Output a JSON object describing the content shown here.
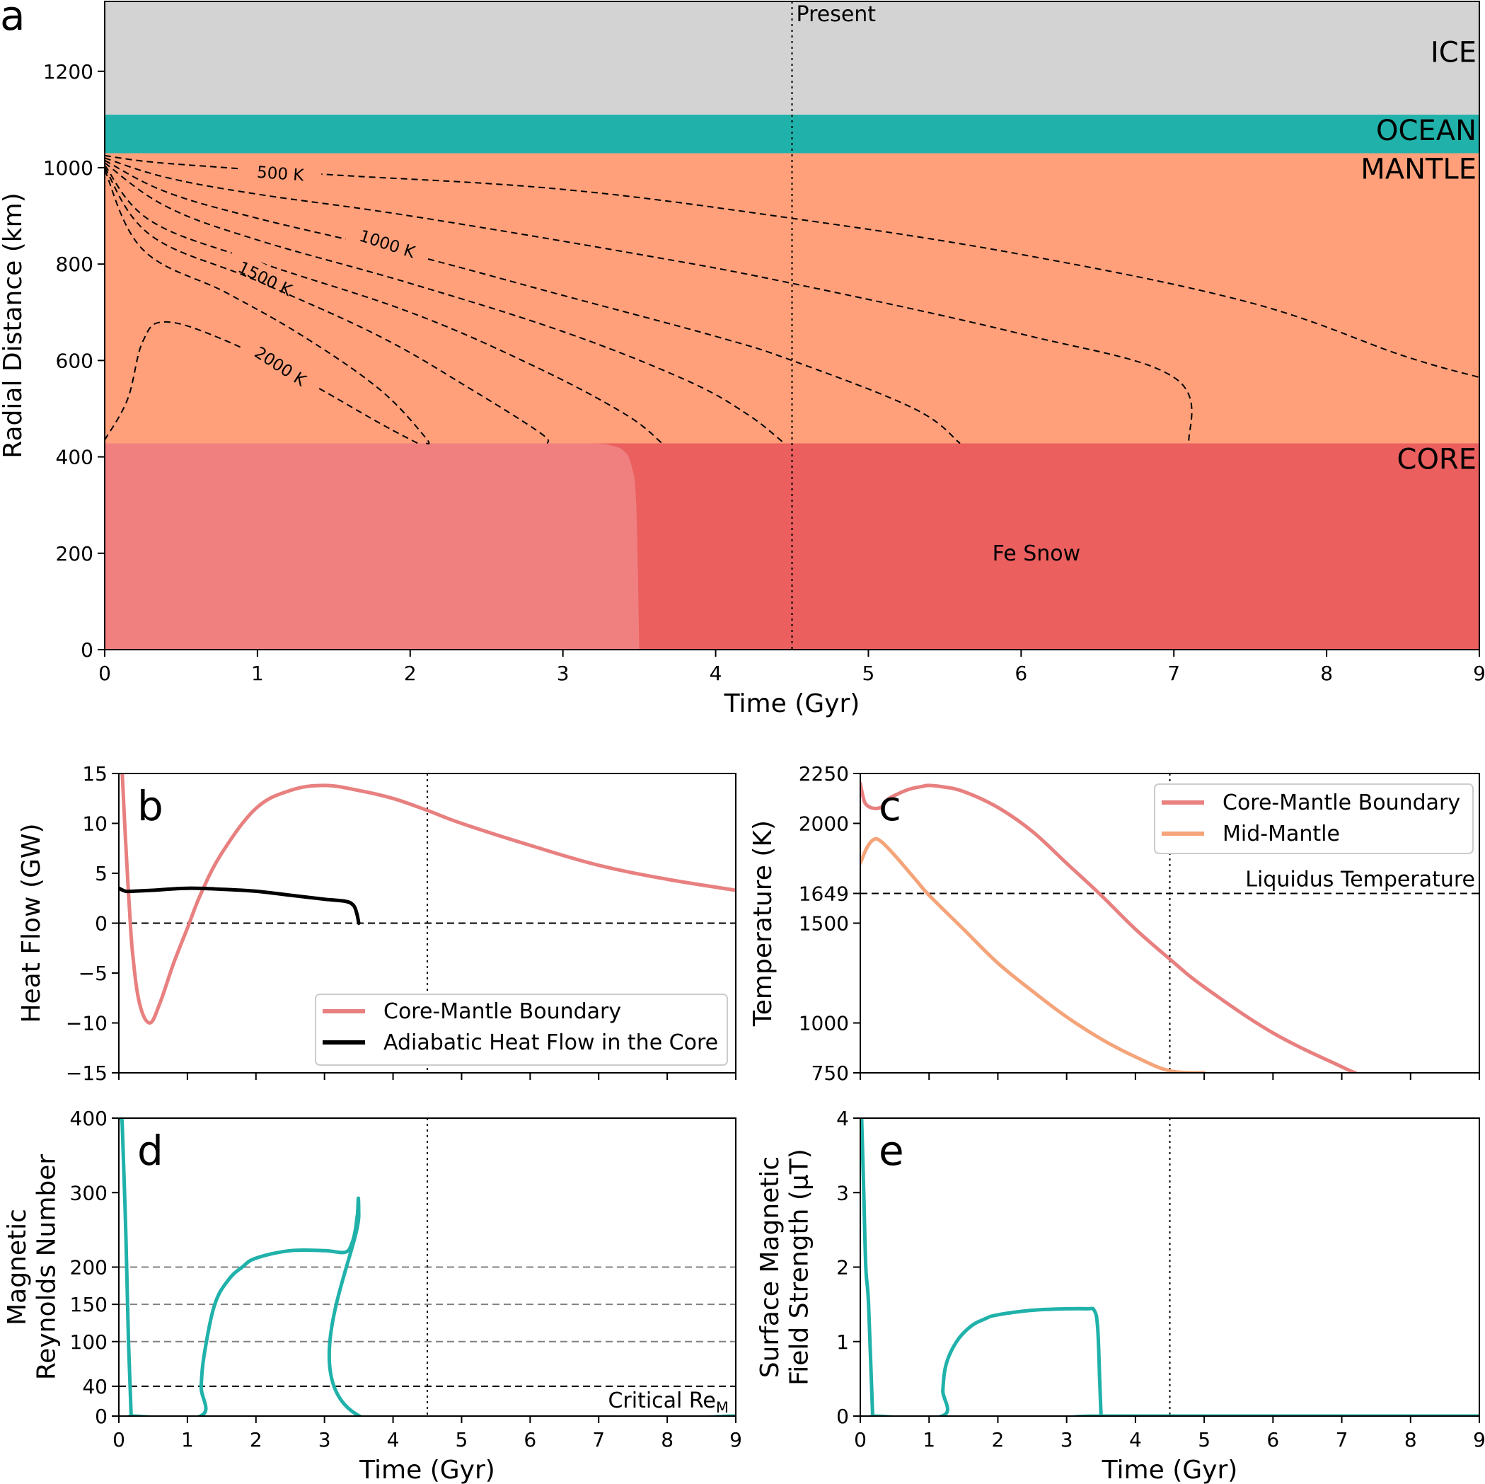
{
  "chart_data": [
    {
      "panel": "a",
      "type": "area",
      "xlabel": "Time (Gyr)",
      "ylabel": "Radial Distance (km)",
      "xlim": [
        0,
        9
      ],
      "ylim": [
        0,
        1345
      ],
      "xticks": [
        0,
        1,
        2,
        3,
        4,
        5,
        6,
        7,
        8,
        9
      ],
      "yticks": [
        0,
        200,
        400,
        600,
        800,
        1000,
        1200
      ],
      "colors": {
        "ice": "#d3d3d3",
        "ocean": "#20b2aa",
        "mantle": "#ffa07a",
        "core_liquid": "#f08080",
        "core_snow": "#eb5f5f"
      },
      "layers": [
        {
          "name": "ICE",
          "from": 1110,
          "to": 1345
        },
        {
          "name": "OCEAN",
          "from": 1030,
          "to": 1110
        },
        {
          "name": "MANTLE",
          "from": 428,
          "to": 1030
        },
        {
          "name": "CORE",
          "from": 0,
          "to": 428
        }
      ],
      "fe_snow_label": "Fe Snow",
      "fe_snow_boundary": [
        [
          3.18,
          428
        ],
        [
          3.3,
          425
        ],
        [
          3.4,
          412
        ],
        [
          3.45,
          380
        ],
        [
          3.48,
          300
        ],
        [
          3.5,
          0
        ]
      ],
      "present_time": 4.5,
      "present_label": "Present",
      "contours": [
        {
          "label": "500 K",
          "points": [
            [
              0,
              1025
            ],
            [
              0.3,
              1012
            ],
            [
              0.8,
              1000
            ],
            [
              1.5,
              985
            ],
            [
              3.0,
              955
            ],
            [
              4.5,
              895
            ],
            [
              6.0,
              820
            ],
            [
              7.5,
              720
            ],
            [
              8.5,
              610
            ],
            [
              9.0,
              565
            ]
          ]
        },
        {
          "label": "",
          "points": [
            [
              0,
              1020
            ],
            [
              0.4,
              980
            ],
            [
              1.0,
              945
            ],
            [
              2.0,
              900
            ],
            [
              3.5,
              820
            ],
            [
              4.5,
              760
            ],
            [
              6.0,
              655
            ],
            [
              7.0,
              565
            ],
            [
              7.1,
              428
            ]
          ]
        },
        {
          "label": "1000 K",
          "points": [
            [
              0,
              1015
            ],
            [
              0.4,
              950
            ],
            [
              1.0,
              895
            ],
            [
              2.0,
              820
            ],
            [
              3.0,
              735
            ],
            [
              4.0,
              650
            ],
            [
              4.5,
              600
            ],
            [
              5.3,
              500
            ],
            [
              5.6,
              428
            ]
          ]
        },
        {
          "label": "",
          "points": [
            [
              0,
              1010
            ],
            [
              0.4,
              920
            ],
            [
              1.0,
              850
            ],
            [
              2.0,
              760
            ],
            [
              3.0,
              660
            ],
            [
              3.8,
              560
            ],
            [
              4.2,
              490
            ],
            [
              4.45,
              428
            ]
          ]
        },
        {
          "label": "1500 K",
          "points": [
            [
              0,
              1005
            ],
            [
              0.3,
              890
            ],
            [
              1.0,
              805
            ],
            [
              2.0,
              700
            ],
            [
              2.8,
              590
            ],
            [
              3.4,
              490
            ],
            [
              3.65,
              428
            ]
          ]
        },
        {
          "label": "",
          "points": [
            [
              0,
              1000
            ],
            [
              0.3,
              860
            ],
            [
              1.0,
              765
            ],
            [
              1.8,
              650
            ],
            [
              2.4,
              540
            ],
            [
              2.85,
              450
            ],
            [
              2.9,
              428
            ]
          ]
        },
        {
          "label": "",
          "points": [
            [
              0,
              995
            ],
            [
              0.25,
              830
            ],
            [
              0.8,
              740
            ],
            [
              1.3,
              650
            ],
            [
              1.8,
              540
            ],
            [
              2.1,
              440
            ],
            [
              2.1,
              428
            ]
          ]
        },
        {
          "label": "2000 K",
          "points": [
            [
              0,
              435
            ],
            [
              0.15,
              520
            ],
            [
              0.25,
              640
            ],
            [
              0.4,
              680
            ],
            [
              0.8,
              640
            ],
            [
              1.3,
              560
            ],
            [
              1.8,
              470
            ],
            [
              2.05,
              428
            ]
          ]
        }
      ]
    },
    {
      "panel": "b",
      "type": "line",
      "xlabel": "",
      "ylabel": "Heat Flow (GW)",
      "xlim": [
        0,
        9
      ],
      "ylim": [
        -15,
        15
      ],
      "yticks": [
        -15,
        -10,
        -5,
        0,
        5,
        10,
        15
      ],
      "ytick_labels": [
        "−15",
        "−10",
        "−5",
        "0",
        "5",
        "10",
        "15"
      ],
      "reference_lines": [
        {
          "y": 0,
          "style": "dashed",
          "color": "#000000"
        }
      ],
      "present_time": 4.5,
      "legend_position": "lower-right",
      "series": [
        {
          "name": "Core-Mantle Boundary",
          "color": "#e88080",
          "x": [
            0.05,
            0.1,
            0.15,
            0.2,
            0.3,
            0.45,
            0.6,
            0.8,
            1.0,
            1.2,
            1.5,
            2.0,
            2.5,
            3.0,
            3.5,
            4.0,
            4.5,
            5.0,
            6.0,
            7.0,
            8.0,
            9.0
          ],
          "y": [
            15,
            8,
            2,
            -3,
            -8,
            -10,
            -8,
            -4,
            -0.5,
            3,
            7,
            11.5,
            13.3,
            13.8,
            13.3,
            12.5,
            11.3,
            10.0,
            7.8,
            5.8,
            4.4,
            3.3
          ]
        },
        {
          "name": "Adiabatic Heat Flow in the Core",
          "color": "#000000",
          "x": [
            0,
            0.1,
            0.2,
            0.5,
            1.0,
            1.5,
            2.0,
            2.5,
            3.0,
            3.3,
            3.42,
            3.47,
            3.5
          ],
          "y": [
            3.5,
            3.2,
            3.2,
            3.3,
            3.5,
            3.4,
            3.2,
            2.8,
            2.4,
            2.2,
            1.8,
            1.0,
            0
          ]
        }
      ]
    },
    {
      "panel": "c",
      "type": "line",
      "xlabel": "",
      "ylabel": "Temperature (K)",
      "xlim": [
        0,
        9
      ],
      "ylim": [
        750,
        2250
      ],
      "yticks": [
        750,
        1000,
        1500,
        1649,
        2000,
        2250
      ],
      "reference_lines": [
        {
          "y": 1649,
          "style": "dashed",
          "color": "#000000",
          "label": "Liquidus Temperature"
        }
      ],
      "present_time": 4.5,
      "legend_position": "top-right",
      "series": [
        {
          "name": "Core-Mantle Boundary",
          "color": "#e88080",
          "x": [
            0,
            0.05,
            0.1,
            0.2,
            0.3,
            0.35,
            0.4,
            0.5,
            0.7,
            0.9,
            1.0,
            1.2,
            1.5,
            2.0,
            2.5,
            3.0,
            3.5,
            4.0,
            4.5,
            5.0,
            6.0,
            7.0,
            7.2
          ],
          "y": [
            2200,
            2120,
            2090,
            2075,
            2080,
            2100,
            2120,
            2140,
            2170,
            2185,
            2190,
            2183,
            2160,
            2080,
            1960,
            1800,
            1640,
            1470,
            1320,
            1180,
            950,
            780,
            750
          ]
        },
        {
          "name": "Mid-Mantle",
          "color": "#f5a47a",
          "x": [
            0,
            0.1,
            0.2,
            0.3,
            0.5,
            0.8,
            1.0,
            1.5,
            2.0,
            2.5,
            3.0,
            3.5,
            4.0,
            4.5,
            5.0
          ],
          "y": [
            1800,
            1880,
            1920,
            1910,
            1840,
            1720,
            1640,
            1470,
            1300,
            1160,
            1030,
            920,
            830,
            760,
            750
          ]
        }
      ]
    },
    {
      "panel": "d",
      "type": "line",
      "xlabel": "Time (Gyr)",
      "ylabel": "Magnetic Reynolds Number",
      "ylabel_lines": [
        "Magnetic",
        "Reynolds Number"
      ],
      "xlim": [
        0,
        9
      ],
      "ylim": [
        0,
        400
      ],
      "xticks": [
        0,
        1,
        2,
        3,
        4,
        5,
        6,
        7,
        8,
        9
      ],
      "yticks": [
        0,
        40,
        100,
        150,
        200,
        300,
        400
      ],
      "reference_lines": [
        {
          "y": 40,
          "style": "dashed",
          "color": "#000000",
          "label": "Critical Re",
          "label_subscript": "M"
        },
        {
          "y": 100,
          "style": "dashed",
          "color": "#808080"
        },
        {
          "y": 150,
          "style": "dashed",
          "color": "#808080"
        },
        {
          "y": 200,
          "style": "dashed",
          "color": "#808080"
        }
      ],
      "present_time": 4.5,
      "series": [
        {
          "name": "",
          "color": "#20b2aa",
          "x": [
            0.02,
            0.05,
            0.1,
            0.14,
            0.18,
            0.2,
            1.19,
            1.2,
            1.25,
            1.4,
            1.6,
            1.8,
            2.0,
            2.5,
            3.0,
            3.3,
            3.4,
            3.45,
            3.48,
            3.5,
            3.51,
            9.0
          ],
          "y": [
            400,
            390,
            250,
            100,
            0,
            0,
            0,
            40,
            85,
            150,
            183,
            200,
            212,
            222,
            222,
            220,
            232,
            250,
            270,
            270,
            0,
            0
          ]
        }
      ]
    },
    {
      "panel": "e",
      "type": "line",
      "xlabel": "Time (Gyr)",
      "ylabel": "Surface Magnetic Field Strength (μT)",
      "ylabel_lines": [
        "Surface Magnetic",
        "Field Strength (μT)"
      ],
      "xlim": [
        0,
        9
      ],
      "ylim": [
        0,
        4
      ],
      "xticks": [
        0,
        1,
        2,
        3,
        4,
        5,
        6,
        7,
        8,
        9
      ],
      "yticks": [
        0,
        1,
        2,
        3,
        4
      ],
      "present_time": 4.5,
      "series": [
        {
          "name": "",
          "color": "#20b2aa",
          "x": [
            0.02,
            0.05,
            0.08,
            0.12,
            0.18,
            0.2,
            1.19,
            1.2,
            1.25,
            1.4,
            1.6,
            1.8,
            2.0,
            2.5,
            3.0,
            3.3,
            3.4,
            3.45,
            3.48,
            3.5,
            3.51,
            9.0
          ],
          "y": [
            4.0,
            3.0,
            2.0,
            1.5,
            0,
            0,
            0,
            0.35,
            0.7,
            1.0,
            1.2,
            1.3,
            1.36,
            1.42,
            1.44,
            1.44,
            1.42,
            1.2,
            0.5,
            0,
            0,
            0
          ]
        }
      ]
    }
  ]
}
